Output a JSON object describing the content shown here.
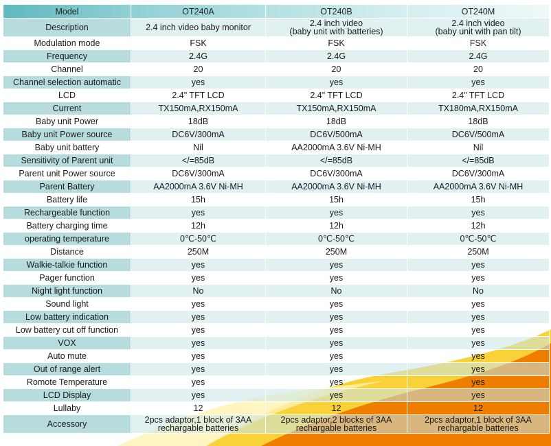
{
  "colors": {
    "header_teal": "#5fb9bf",
    "row_band": "#c8e6e7",
    "label_band": "#aad6d8",
    "orange": "#ef7d00",
    "yellow": "#f7c21a"
  },
  "table": {
    "headers": [
      "Model",
      "OT240A",
      "OT240B",
      "OT240M"
    ],
    "rows": [
      {
        "label": "Description",
        "values": [
          "2.4 inch video baby monitor",
          "2.4 inch video\n(baby unit with batteries)",
          "2.4 inch video\n(baby unit with pan tilt)"
        ]
      },
      {
        "label": "Modulation mode",
        "values": [
          "FSK",
          "FSK",
          "FSK"
        ]
      },
      {
        "label": "Frequency",
        "values": [
          "2.4G",
          "2.4G",
          "2.4G"
        ]
      },
      {
        "label": "Channel",
        "values": [
          "20",
          "20",
          "20"
        ]
      },
      {
        "label": "Channel selection automatic",
        "values": [
          "yes",
          "yes",
          "yes"
        ]
      },
      {
        "label": "LCD",
        "values": [
          "2.4\" TFT LCD",
          "2.4\" TFT LCD",
          "2.4\" TFT LCD"
        ]
      },
      {
        "label": "Current",
        "values": [
          "TX150mA,RX150mA",
          "TX150mA,RX150mA",
          "TX180mA,RX150mA"
        ]
      },
      {
        "label": "Baby unit Power",
        "values": [
          "18dB",
          "18dB",
          "18dB"
        ]
      },
      {
        "label": "Baby unit Power source",
        "values": [
          "DC6V/300mA",
          "DC6V/500mA",
          "DC6V/500mA"
        ]
      },
      {
        "label": "Baby unit battery",
        "values": [
          "Nil",
          "AA2000mA 3.6V Ni-MH",
          "Nil"
        ]
      },
      {
        "label": "Sensitivity of Parent unit",
        "values": [
          "</=85dB",
          "</=85dB",
          "</=85dB"
        ]
      },
      {
        "label": "Parent unit Power source",
        "values": [
          "DC6V/300mA",
          "DC6V/300mA",
          "DC6V/300mA"
        ]
      },
      {
        "label": "Parent Battery",
        "values": [
          "AA2000mA 3.6V Ni-MH",
          "AA2000mA 3.6V Ni-MH",
          "AA2000mA 3.6V Ni-MH"
        ]
      },
      {
        "label": "Battery life",
        "values": [
          "15h",
          "15h",
          "15h"
        ]
      },
      {
        "label": "Rechargeable function",
        "values": [
          "yes",
          "yes",
          "yes"
        ]
      },
      {
        "label": "Battery charging time",
        "values": [
          "12h",
          "12h",
          "12h"
        ]
      },
      {
        "label": "operating temperature",
        "values": [
          "0℃-50℃",
          "0℃-50℃",
          "0℃-50℃"
        ]
      },
      {
        "label": "Distance",
        "values": [
          "250M",
          "250M",
          "250M"
        ]
      },
      {
        "label": "Walkie-talkie function",
        "values": [
          "yes",
          "yes",
          "yes"
        ]
      },
      {
        "label": "Pager function",
        "values": [
          "yes",
          "yes",
          "yes"
        ]
      },
      {
        "label": "Night light function",
        "values": [
          "No",
          "No",
          "No"
        ]
      },
      {
        "label": "Sound light",
        "values": [
          "yes",
          "yes",
          "yes"
        ]
      },
      {
        "label": "Low battery indication",
        "values": [
          "yes",
          "yes",
          "yes"
        ]
      },
      {
        "label": "Low battery cut off function",
        "values": [
          "yes",
          "yes",
          "yes"
        ]
      },
      {
        "label": "VOX",
        "values": [
          "yes",
          "yes",
          "yes"
        ]
      },
      {
        "label": "Auto mute",
        "values": [
          "yes",
          "yes",
          "yes"
        ]
      },
      {
        "label": "Out of range alert",
        "values": [
          "yes",
          "yes",
          "yes"
        ]
      },
      {
        "label": "Romote Temperature",
        "values": [
          "yes",
          "yes",
          "yes"
        ]
      },
      {
        "label": "LCD Display",
        "values": [
          "yes",
          "yes",
          "yes"
        ]
      },
      {
        "label": "Lullaby",
        "values": [
          "12",
          "12",
          "12"
        ]
      },
      {
        "label": "Accessory",
        "values": [
          "2pcs adaptor,1 block of 3AA\nrechargable batteries",
          "2pcs adaptor,2 blocks of 3AA\nrechargable batteries",
          "2pcs adaptor,1 block of 3AA\nrechargable batteries"
        ]
      }
    ]
  }
}
